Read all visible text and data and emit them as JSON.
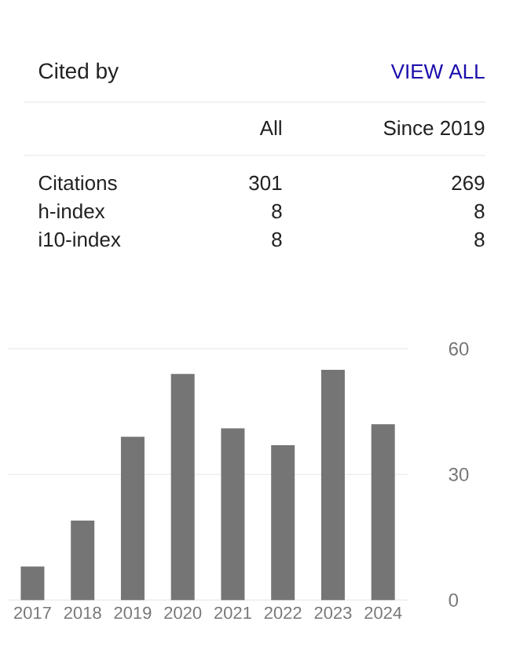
{
  "chart_data": {
    "type": "bar",
    "title": "Cited by",
    "annotations": [
      "VIEW ALL",
      "All",
      "Since 2019",
      "Citations",
      "301",
      "269",
      "h-index",
      "8",
      "8",
      "i10-index",
      "8",
      "8"
    ],
    "categories": [
      "2017",
      "2018",
      "2019",
      "2020",
      "2021",
      "2022",
      "2023",
      "2024"
    ],
    "values": [
      8,
      19,
      39,
      54,
      41,
      37,
      55,
      42
    ],
    "color": "#757575",
    "ylim": [
      0,
      60
    ],
    "yticks": [
      0,
      30,
      60
    ],
    "grid": "y"
  }
}
